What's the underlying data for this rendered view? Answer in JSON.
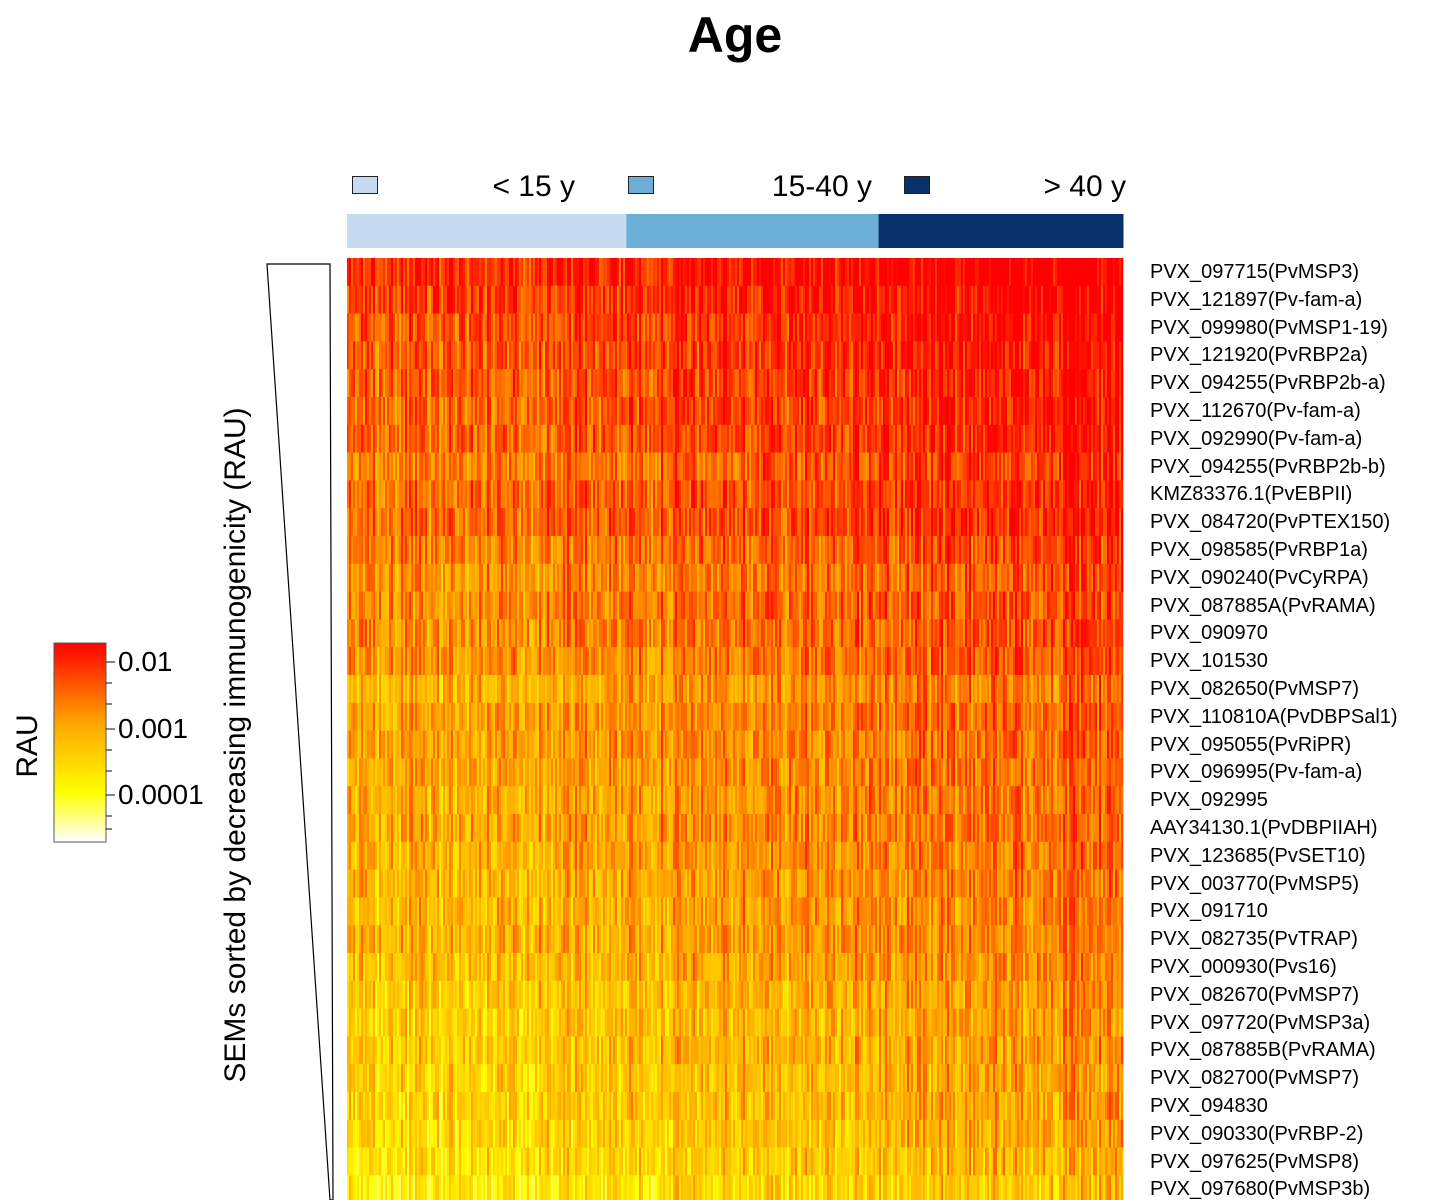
{
  "title": "Age",
  "chart_data": {
    "type": "heatmap",
    "title": "Age",
    "ylabel": "SEMs sorted by decreasing  immunogenicity (RAU)",
    "colorbar": {
      "title": "RAU",
      "ticks": [
        "0.01",
        "0.001",
        "0.0001"
      ],
      "colors": [
        "#ffffff",
        "#ffff00",
        "#ffa500",
        "#ff0000"
      ]
    },
    "groups": [
      {
        "label": "< 15 y",
        "color": "#c6dbef",
        "fraction": 0.36
      },
      {
        "label": "15-40 y",
        "color": "#6baed6",
        "fraction": 0.325
      },
      {
        "label": "> 40 y",
        "color": "#08306b",
        "fraction": 0.315
      }
    ],
    "rows": [
      {
        "label": "PVX_097715(PvMSP3)",
        "level": 0.95
      },
      {
        "label": "PVX_121897(Pv-fam-a)",
        "level": 0.9
      },
      {
        "label": "PVX_099980(PvMSP1-19)",
        "level": 0.86
      },
      {
        "label": "PVX_121920(PvRBP2a)",
        "level": 0.84
      },
      {
        "label": "PVX_094255(PvRBP2b-a)",
        "level": 0.83
      },
      {
        "label": "PVX_112670(Pv-fam-a)",
        "level": 0.82
      },
      {
        "label": "PVX_092990(Pv-fam-a)",
        "level": 0.81
      },
      {
        "label": "PVX_094255(PvRBP2b-b)",
        "level": 0.76
      },
      {
        "label": "KMZ83376.1(PvEBPII)",
        "level": 0.8
      },
      {
        "label": "PVX_084720(PvPTEX150)",
        "level": 0.8
      },
      {
        "label": "PVX_098585(PvRBP1a)",
        "level": 0.74
      },
      {
        "label": "PVX_090240(PvCyRPA)",
        "level": 0.7
      },
      {
        "label": "PVX_087885A(PvRAMA)",
        "level": 0.72
      },
      {
        "label": "PVX_090970",
        "level": 0.71
      },
      {
        "label": "PVX_101530",
        "level": 0.7
      },
      {
        "label": "PVX_082650(PvMSP7)",
        "level": 0.62
      },
      {
        "label": "PVX_110810A(PvDBPSal1)",
        "level": 0.66
      },
      {
        "label": "PVX_095055(PvRiPR)",
        "level": 0.65
      },
      {
        "label": "PVX_096995(Pv-fam-a)",
        "level": 0.64
      },
      {
        "label": "PVX_092995",
        "level": 0.63
      },
      {
        "label": "AAY34130.1(PvDBPIIAH)",
        "level": 0.64
      },
      {
        "label": "PVX_123685(PvSET10)",
        "level": 0.62
      },
      {
        "label": "PVX_003770(PvMSP5)",
        "level": 0.6
      },
      {
        "label": "PVX_091710",
        "level": 0.6
      },
      {
        "label": "PVX_082735(PvTRAP)",
        "level": 0.6
      },
      {
        "label": "PVX_000930(Pvs16)",
        "level": 0.57
      },
      {
        "label": "PVX_082670(PvMSP7)",
        "level": 0.54
      },
      {
        "label": "PVX_097720(PvMSP3a)",
        "level": 0.52
      },
      {
        "label": "PVX_087885B(PvRAMA)",
        "level": 0.53
      },
      {
        "label": "PVX_082700(PvMSP7)",
        "level": 0.5
      },
      {
        "label": "PVX_094830",
        "level": 0.5
      },
      {
        "label": "PVX_090330(PvRBP-2)",
        "level": 0.48
      },
      {
        "label": "PVX_097625(PvMSP8)",
        "level": 0.45
      },
      {
        "label": "PVX_097680(PvMSP3b)",
        "level": 0.4
      }
    ]
  }
}
